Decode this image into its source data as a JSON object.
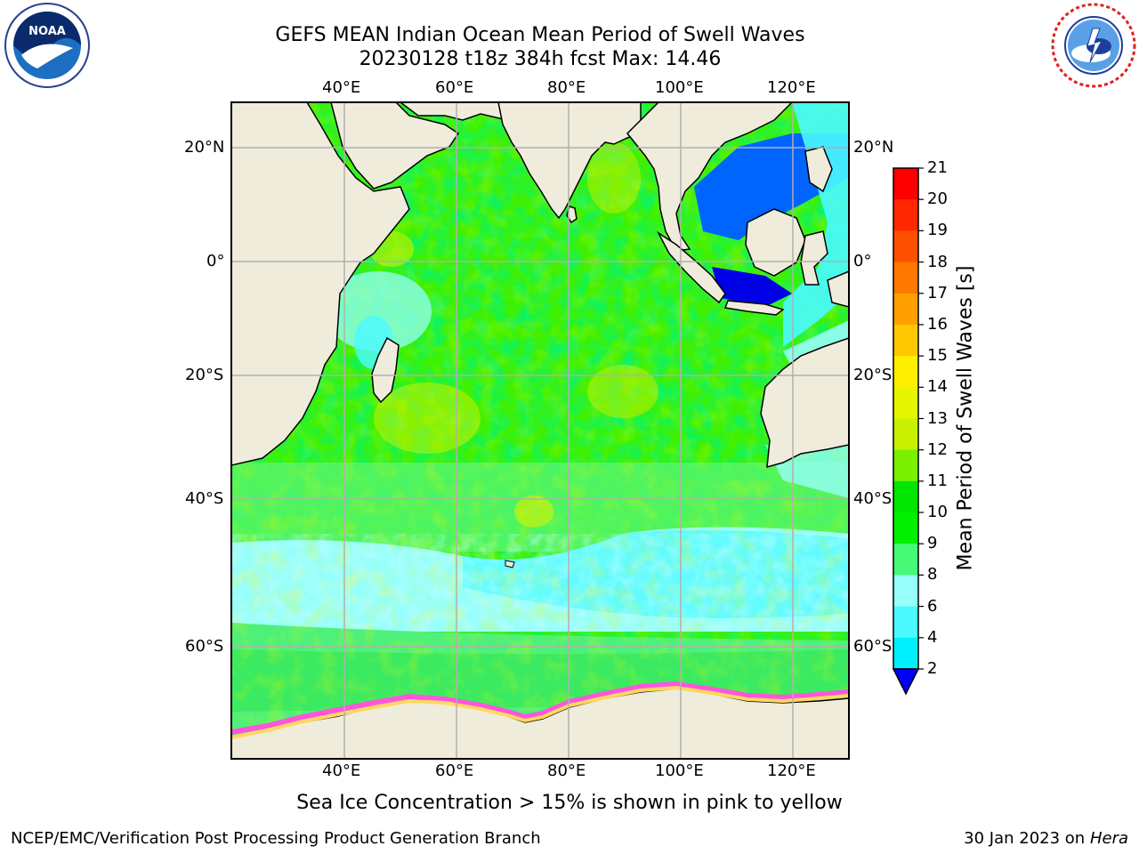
{
  "header": {
    "title_line1": "GEFS MEAN Indian Ocean Mean Period of Swell Waves",
    "title_line2": "20230128 t18z 384h fcst   Max: 14.46"
  },
  "logos": {
    "left": {
      "icon": "noaa-logo",
      "text": "NOAA",
      "ring_text": "NATIONAL OCEANIC AND ATMOSPHERIC ADMINISTRATION · U.S. DEPARTMENT OF COMMERCE"
    },
    "right": {
      "icon": "nws-logo",
      "ring_text": "NATIONAL WEATHER SERVICE"
    }
  },
  "map": {
    "lon_labels": [
      "40°E",
      "60°E",
      "80°E",
      "100°E",
      "120°E"
    ],
    "lat_labels_left": [
      "20°N",
      "0°",
      "20°S",
      "40°S",
      "60°S"
    ],
    "lat_labels_right": [
      "20°N",
      "0°",
      "20°S",
      "40°S",
      "60°S"
    ],
    "land_color": "#efecdc",
    "grid_color": "#b0b0b0"
  },
  "colorbar": {
    "label": "Mean Period of Swell Waves [s]",
    "ticks": [
      "21",
      "20",
      "19",
      "18",
      "17",
      "16",
      "15",
      "14",
      "13",
      "12",
      "11",
      "10",
      "9",
      "8",
      "6",
      "4",
      "2"
    ],
    "colors": [
      "#ff0000",
      "#ff2800",
      "#ff5000",
      "#ff7800",
      "#ffa000",
      "#ffc800",
      "#fff000",
      "#e6f500",
      "#c8f000",
      "#78f000",
      "#00e600",
      "#00f000",
      "#46fa78",
      "#96fffa",
      "#4bfaff",
      "#00f0ff",
      "#0096ff",
      "#0000ff"
    ]
  },
  "caption": "Sea Ice Concentration > 15% is shown in pink to yellow",
  "footer": {
    "left": "NCEP/EMC/Verification Post Processing Product Generation Branch",
    "right_prefix": "30 Jan 2023 on ",
    "right_host": "Hera"
  }
}
